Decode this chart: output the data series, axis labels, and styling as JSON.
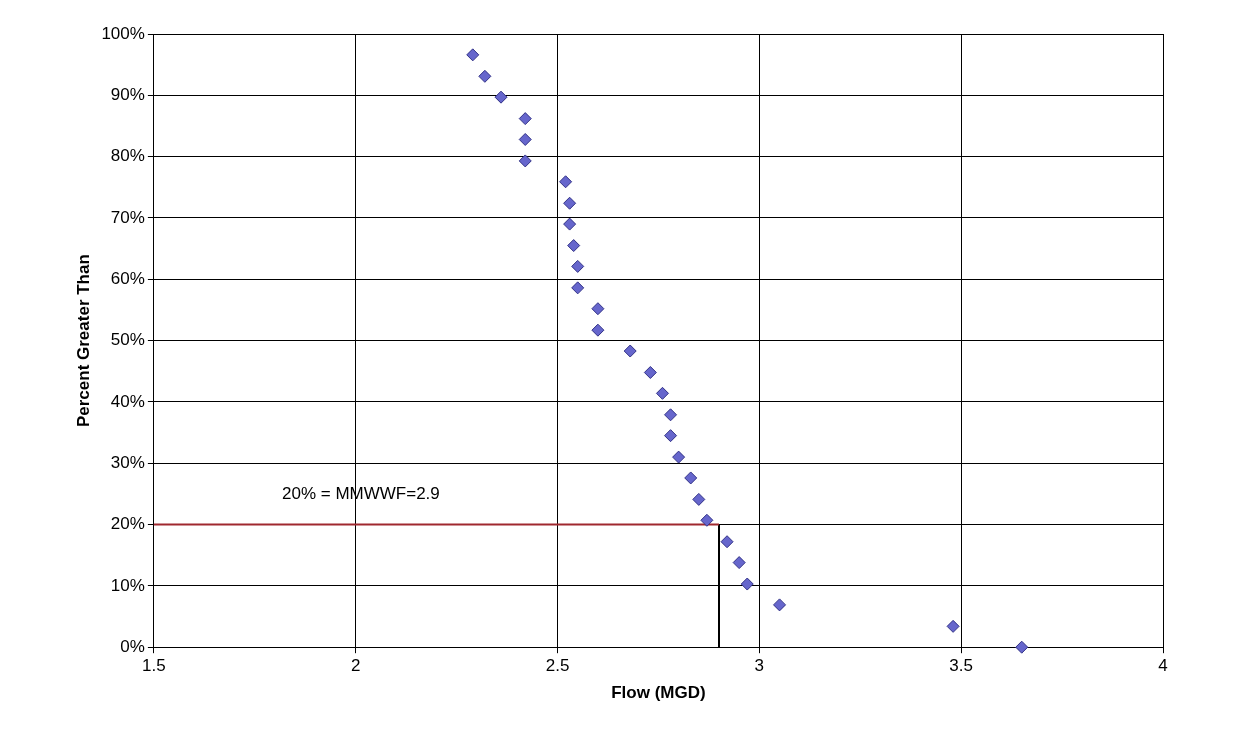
{
  "chart_data": {
    "type": "scatter",
    "xlabel": "Flow (MGD)",
    "ylabel": "Percent Greater Than",
    "xlim": [
      1.5,
      4
    ],
    "xticks": [
      1.5,
      2,
      2.5,
      3,
      3.5,
      4
    ],
    "ylim": [
      0,
      100
    ],
    "yticks": [
      {
        "value": 0,
        "label": "0%"
      },
      {
        "value": 10,
        "label": "10%"
      },
      {
        "value": 20,
        "label": "20%"
      },
      {
        "value": 30,
        "label": "30%"
      },
      {
        "value": 40,
        "label": "40%"
      },
      {
        "value": 50,
        "label": "50%"
      },
      {
        "value": 60,
        "label": "60%"
      },
      {
        "value": 70,
        "label": "70%"
      },
      {
        "value": 80,
        "label": "80%"
      },
      {
        "value": 90,
        "label": "90%"
      },
      {
        "value": 100,
        "label": "100%"
      }
    ],
    "grid": true,
    "legend": false,
    "marker": "diamond",
    "series": [
      {
        "color": "#6666cc",
        "x": [
          2.29,
          2.32,
          2.36,
          2.42,
          2.42,
          2.42,
          2.52,
          2.53,
          2.53,
          2.54,
          2.55,
          2.55,
          2.6,
          2.6,
          2.68,
          2.73,
          2.76,
          2.78,
          2.78,
          2.8,
          2.83,
          2.85,
          2.87,
          2.92,
          2.95,
          2.97,
          3.05,
          3.48,
          3.65
        ],
        "values": [
          96.6,
          93.1,
          89.7,
          86.2,
          82.8,
          79.3,
          75.9,
          72.4,
          69,
          65.5,
          62.1,
          58.6,
          55.2,
          51.7,
          48.3,
          44.8,
          41.4,
          37.9,
          34.5,
          31,
          27.6,
          24.1,
          20.7,
          17.2,
          13.8,
          10.3,
          6.9,
          3.4,
          0
        ]
      },
      {
        "type": "line",
        "color": "#a0282f",
        "x": [
          1.5,
          2.9
        ],
        "values": [
          20,
          20
        ],
        "marker": "none"
      },
      {
        "type": "line",
        "color": "#000000",
        "x": [
          2.9,
          2.9
        ],
        "values": [
          0,
          20
        ],
        "marker": "none"
      }
    ],
    "annotations": [
      "20% = MMWWF=2.9"
    ]
  }
}
